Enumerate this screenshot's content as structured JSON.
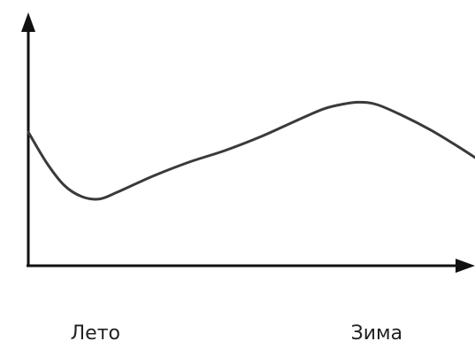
{
  "chart_data": {
    "type": "line",
    "title": "",
    "xlabel": "",
    "ylabel": "",
    "grid": false,
    "legend": "none",
    "xlim": [
      0,
      1
    ],
    "ylim": [
      0,
      1
    ],
    "categories": [
      {
        "x": 0.15,
        "label": "Лето"
      },
      {
        "x": 0.78,
        "label": "Зима"
      }
    ],
    "series": [
      {
        "color": "#3a3a3a",
        "points": [
          [
            0.0,
            0.58
          ],
          [
            0.04,
            0.45
          ],
          [
            0.08,
            0.35
          ],
          [
            0.12,
            0.3
          ],
          [
            0.16,
            0.29
          ],
          [
            0.2,
            0.32
          ],
          [
            0.28,
            0.39
          ],
          [
            0.36,
            0.45
          ],
          [
            0.44,
            0.5
          ],
          [
            0.52,
            0.56
          ],
          [
            0.6,
            0.63
          ],
          [
            0.66,
            0.68
          ],
          [
            0.7,
            0.7
          ],
          [
            0.74,
            0.71
          ],
          [
            0.78,
            0.7
          ],
          [
            0.84,
            0.65
          ],
          [
            0.9,
            0.59
          ],
          [
            0.96,
            0.52
          ],
          [
            1.0,
            0.47
          ]
        ]
      }
    ]
  }
}
